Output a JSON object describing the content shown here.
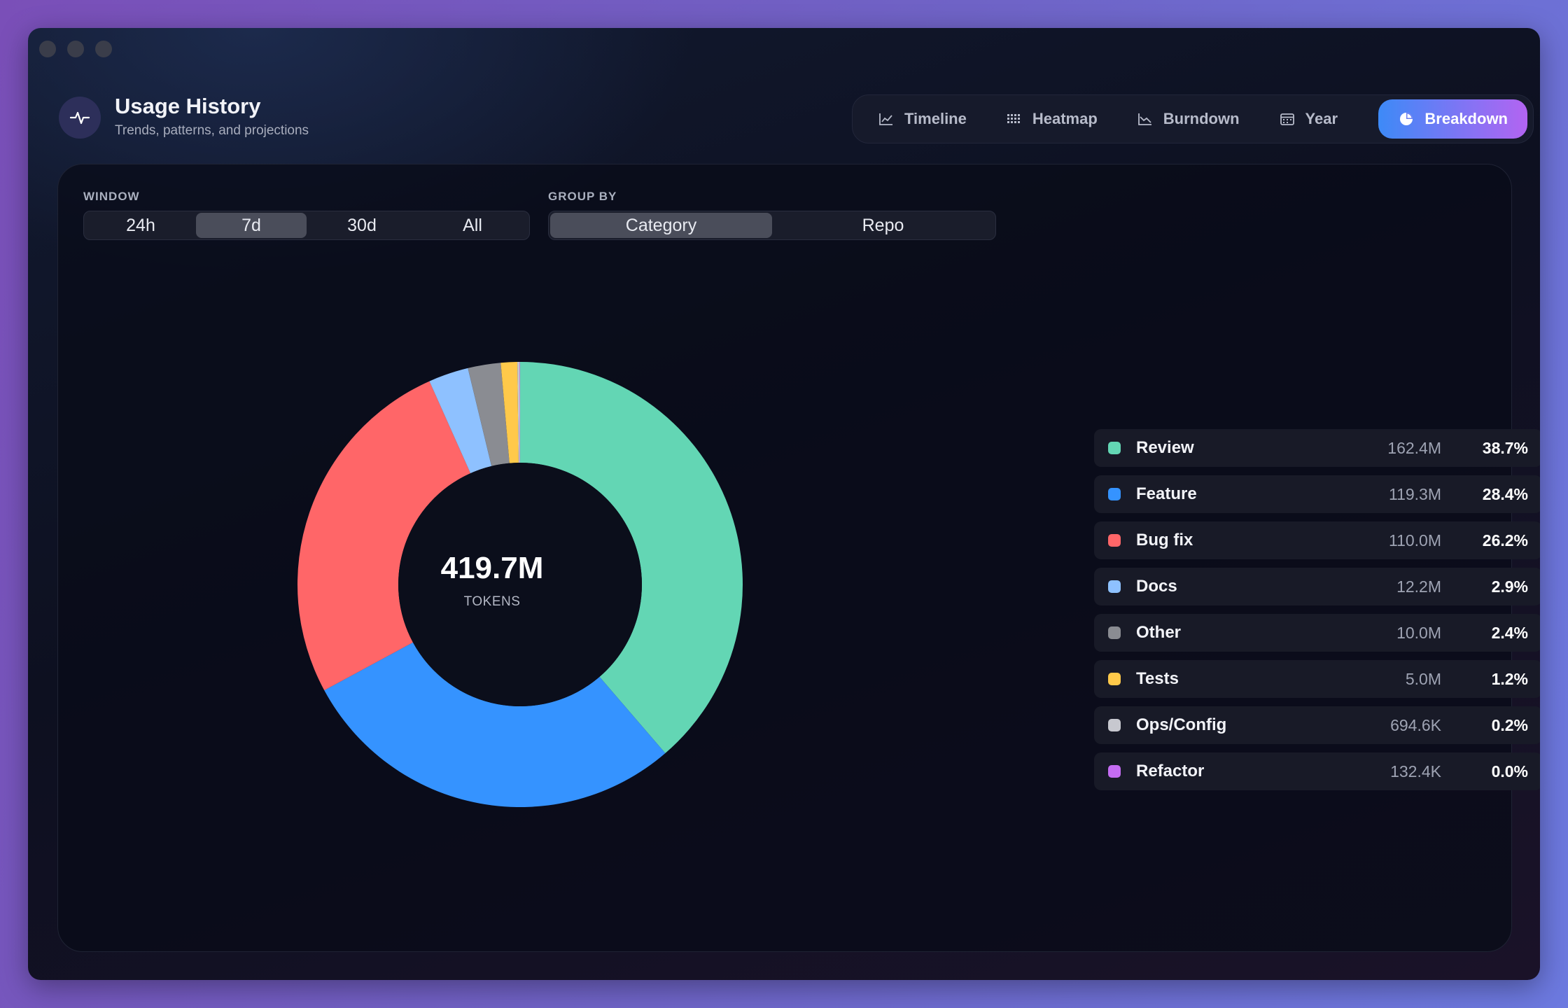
{
  "header": {
    "title": "Usage History",
    "subtitle": "Trends, patterns, and projections",
    "logo_icon": "pulse-icon"
  },
  "tabs": [
    {
      "label": "Timeline",
      "icon": "line-chart-icon",
      "active": false
    },
    {
      "label": "Heatmap",
      "icon": "grid-icon",
      "active": false
    },
    {
      "label": "Burndown",
      "icon": "area-chart-icon",
      "active": false
    },
    {
      "label": "Year",
      "icon": "calendar-icon",
      "active": false
    },
    {
      "label": "Breakdown",
      "icon": "pie-chart-icon",
      "active": true
    }
  ],
  "controls": {
    "window_label": "WINDOW",
    "window_options": [
      "24h",
      "7d",
      "30d",
      "All"
    ],
    "window_selected": "7d",
    "group_label": "GROUP BY",
    "group_options": [
      "Category",
      "Repo"
    ],
    "group_selected": "Category"
  },
  "total": {
    "value": "419.7M",
    "unit": "TOKENS"
  },
  "chart_data": {
    "type": "pie",
    "variant": "donut",
    "total": 419.7,
    "unit": "M tokens",
    "slices": [
      {
        "name": "Review",
        "value": 162.4,
        "value_label": "162.4M",
        "percent": "38.7%",
        "color": "#63d6b4"
      },
      {
        "name": "Feature",
        "value": 119.3,
        "value_label": "119.3M",
        "percent": "28.4%",
        "color": "#3593ff"
      },
      {
        "name": "Bug fix",
        "value": 110.0,
        "value_label": "110.0M",
        "percent": "26.2%",
        "color": "#ff6668"
      },
      {
        "name": "Docs",
        "value": 12.2,
        "value_label": "12.2M",
        "percent": "2.9%",
        "color": "#8ec1ff"
      },
      {
        "name": "Other",
        "value": 10.0,
        "value_label": "10.0M",
        "percent": "2.4%",
        "color": "#8a8c92"
      },
      {
        "name": "Tests",
        "value": 5.0,
        "value_label": "5.0M",
        "percent": "1.2%",
        "color": "#ffc94a"
      },
      {
        "name": "Ops/Config",
        "value": 0.6946,
        "value_label": "694.6K",
        "percent": "0.2%",
        "color": "#c7c8cf"
      },
      {
        "name": "Refactor",
        "value": 0.1324,
        "value_label": "132.4K",
        "percent": "0.0%",
        "color": "#c46cf2"
      }
    ]
  }
}
